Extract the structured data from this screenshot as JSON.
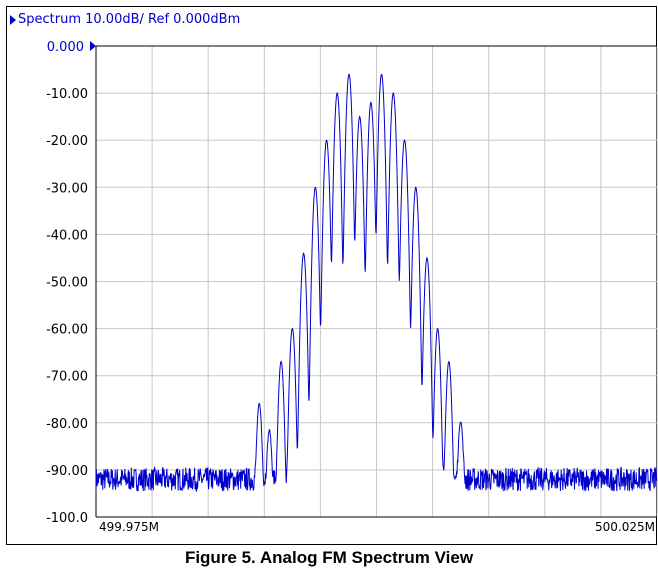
{
  "header": {
    "title": "Spectrum 10.00dB/ Ref 0.000dBm"
  },
  "caption": "Figure 5. Analog FM Spectrum View",
  "colors": {
    "trace": "#0000cc",
    "grid": "#c8c8c8",
    "label": "#0000cc",
    "axis": "#000000"
  },
  "chart_data": {
    "type": "line",
    "title": "Spectrum 10.00dB/ Ref 0.000dBm",
    "y_ticks": [
      "0.000",
      "-10.00",
      "-20.00",
      "-30.00",
      "-40.00",
      "-50.00",
      "-60.00",
      "-70.00",
      "-80.00",
      "-90.00",
      "-100.0"
    ],
    "ylim": [
      -100,
      0
    ],
    "xlim": [
      499.975,
      500.025
    ],
    "x_tick_labels": [
      "499.975M",
      "500.025M"
    ],
    "x_gridlines": 10,
    "grid": true,
    "noise_floor_dBm": -92,
    "series": [
      {
        "carrier_center_MHz": 500.0,
        "peaks": [
          {
            "f": 499.98955,
            "db": -76
          },
          {
            "f": 499.99045,
            "db": -82
          },
          {
            "f": 499.9915,
            "db": -67
          },
          {
            "f": 499.9925,
            "db": -60
          },
          {
            "f": 499.9935,
            "db": -44
          },
          {
            "f": 499.99455,
            "db": -30
          },
          {
            "f": 499.99555,
            "db": -20
          },
          {
            "f": 499.9965,
            "db": -10
          },
          {
            "f": 499.99755,
            "db": -6
          },
          {
            "f": 499.9985,
            "db": -15
          },
          {
            "f": 499.9995,
            "db": -12
          },
          {
            "f": 500.00045,
            "db": -6
          },
          {
            "f": 500.0015,
            "db": -10
          },
          {
            "f": 500.0025,
            "db": -20
          },
          {
            "f": 500.0035,
            "db": -30
          },
          {
            "f": 500.0045,
            "db": -45
          },
          {
            "f": 500.00545,
            "db": -60
          },
          {
            "f": 500.00645,
            "db": -67
          },
          {
            "f": 500.0075,
            "db": -80
          }
        ]
      }
    ]
  }
}
